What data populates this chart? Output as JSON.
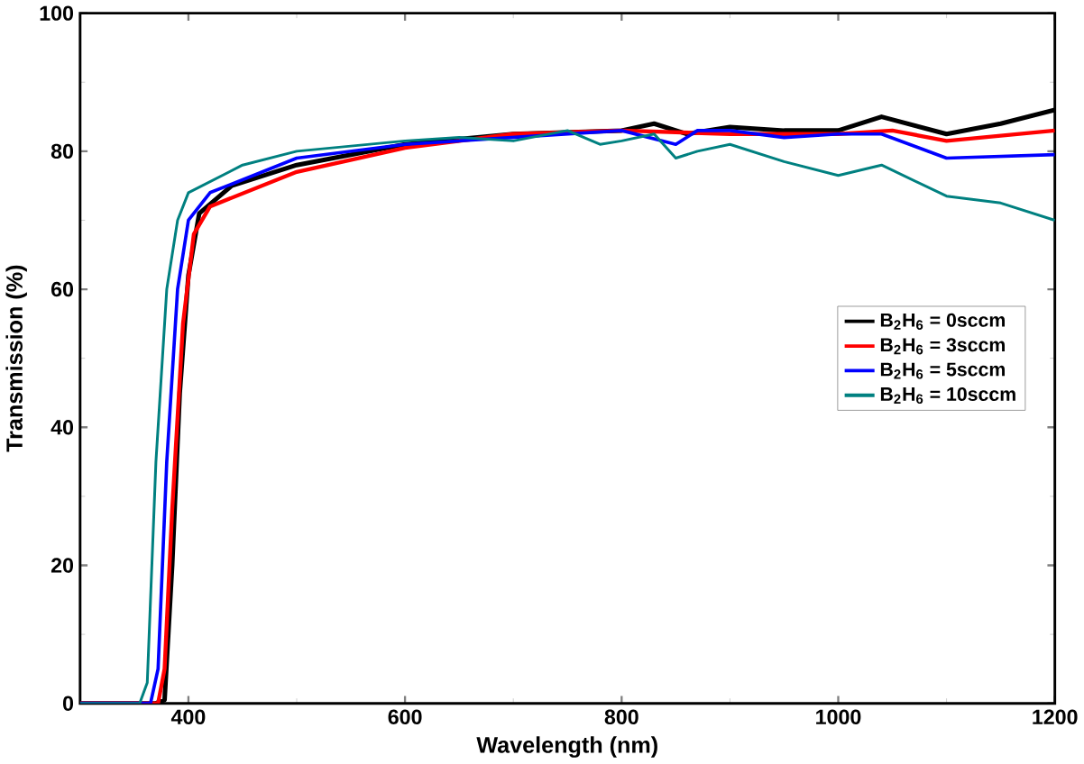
{
  "chart_data": {
    "type": "line",
    "xlabel": "Wavelength (nm)",
    "ylabel": "Transmission (%)",
    "xlim": [
      300,
      1200
    ],
    "ylim": [
      0,
      100
    ],
    "xticks": [
      400,
      600,
      800,
      1000,
      1200
    ],
    "yticks": [
      0,
      20,
      40,
      60,
      80,
      100
    ],
    "grid": false,
    "legend": "right",
    "marker": "none",
    "line_style": "solid",
    "series": [
      {
        "name": "B$_{2}$H$_{6}$ = 0sccm",
        "color": "#000000",
        "x": [
          300,
          370,
          378,
          385,
          392,
          400,
          410,
          440,
          500,
          600,
          700,
          800,
          830,
          860,
          900,
          950,
          1000,
          1040,
          1100,
          1150,
          1200
        ],
        "values": [
          0,
          0,
          0.5,
          20,
          45,
          62,
          71,
          75,
          78,
          81,
          82.5,
          83,
          84,
          82.5,
          83.5,
          83,
          83,
          85,
          82.5,
          84,
          86
        ]
      },
      {
        "name": "B$_{2}$H$_{6}$ = 3sccm",
        "color": "#ff0000",
        "x": [
          300,
          372,
          378,
          385,
          395,
          405,
          420,
          500,
          600,
          700,
          800,
          900,
          1000,
          1050,
          1100,
          1200
        ],
        "values": [
          0,
          0,
          5,
          28,
          55,
          68,
          72,
          77,
          80.5,
          82.5,
          83,
          82.5,
          82.5,
          83,
          81.5,
          83
        ]
      },
      {
        "name": "B$_{2}$H$_{6}$ = 5sccm",
        "color": "#0000ff",
        "x": [
          300,
          365,
          372,
          380,
          390,
          400,
          420,
          500,
          600,
          700,
          800,
          850,
          870,
          900,
          950,
          1000,
          1040,
          1100,
          1200
        ],
        "values": [
          0,
          0,
          5,
          35,
          60,
          70,
          74,
          79,
          81,
          82,
          83,
          81,
          83,
          83,
          82,
          82.5,
          82.5,
          79,
          79.5
        ]
      },
      {
        "name": "B$_{2}$H$_{6}$ = 10sccm",
        "color": "#008080",
        "x": [
          300,
          355,
          362,
          370,
          380,
          390,
          400,
          450,
          500,
          600,
          650,
          700,
          750,
          780,
          800,
          830,
          850,
          870,
          900,
          950,
          1000,
          1040,
          1100,
          1150,
          1200
        ],
        "values": [
          0,
          0,
          3,
          35,
          60,
          70,
          74,
          78,
          80,
          81.5,
          82,
          81.5,
          83,
          81,
          81.5,
          82.5,
          79,
          80,
          81,
          78.5,
          76.5,
          78,
          73.5,
          72.5,
          70
        ]
      }
    ]
  }
}
